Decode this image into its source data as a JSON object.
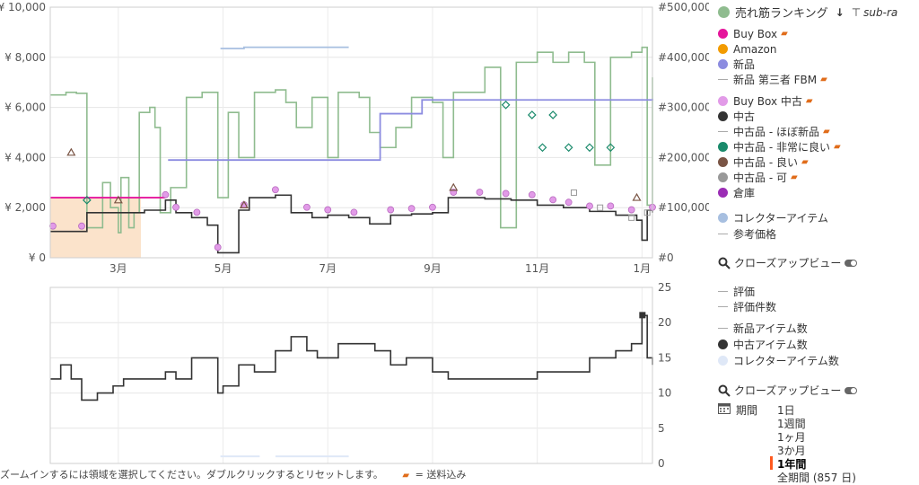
{
  "chart_data": [
    {
      "type": "line",
      "title": "",
      "x_tick_labels": [
        "3月",
        "5月",
        "7月",
        "9月",
        "11月",
        "1月"
      ],
      "x_tick_months": [
        2,
        4,
        6,
        8,
        10,
        12
      ],
      "x_range_months": [
        0.7,
        12.2
      ],
      "y_left": {
        "ticks": [
          "¥ 0",
          "¥ 2,000",
          "¥ 4,000",
          "¥ 6,000",
          "¥ 8,000",
          "¥ 10,000"
        ],
        "range": [
          0,
          10000
        ]
      },
      "y_right": {
        "ticks": [
          "#0",
          "#100,000",
          "#200,000",
          "#300,000",
          "#400,000",
          "#500,000"
        ],
        "range": [
          0,
          500000
        ]
      },
      "grid": true,
      "series": [
        {
          "name": "売れ筋ランキング",
          "axis": "right",
          "color": "#8fbc8f",
          "points": [
            [
              0.7,
              325000
            ],
            [
              1.0,
              330000
            ],
            [
              1.2,
              328000
            ],
            [
              1.4,
              60000
            ],
            [
              1.7,
              150000
            ],
            [
              1.85,
              100000
            ],
            [
              2.0,
              50000
            ],
            [
              2.05,
              160000
            ],
            [
              2.2,
              60000
            ],
            [
              2.3,
              90000
            ],
            [
              2.4,
              290000
            ],
            [
              2.6,
              300000
            ],
            [
              2.7,
              260000
            ],
            [
              2.8,
              90000
            ],
            [
              3.0,
              140000
            ],
            [
              3.3,
              320000
            ],
            [
              3.6,
              330000
            ],
            [
              3.9,
              120000
            ],
            [
              4.1,
              290000
            ],
            [
              4.3,
              200000
            ],
            [
              4.6,
              330000
            ],
            [
              5.0,
              335000
            ],
            [
              5.2,
              310000
            ],
            [
              5.4,
              260000
            ],
            [
              5.7,
              320000
            ],
            [
              6.0,
              200000
            ],
            [
              6.2,
              330000
            ],
            [
              6.6,
              320000
            ],
            [
              6.8,
              250000
            ],
            [
              7.0,
              220000
            ],
            [
              7.3,
              260000
            ],
            [
              7.6,
              320000
            ],
            [
              8.0,
              310000
            ],
            [
              8.2,
              200000
            ],
            [
              8.4,
              330000
            ],
            [
              8.8,
              330000
            ],
            [
              9.0,
              380000
            ],
            [
              9.3,
              60000
            ],
            [
              9.6,
              390000
            ],
            [
              10.0,
              410000
            ],
            [
              10.3,
              390000
            ],
            [
              10.6,
              410000
            ],
            [
              10.9,
              390000
            ],
            [
              11.1,
              185000
            ],
            [
              11.4,
              400000
            ],
            [
              11.8,
              410000
            ],
            [
              12.0,
              420000
            ],
            [
              12.1,
              105000
            ],
            [
              12.2,
              360000
            ]
          ]
        },
        {
          "name": "Buy Box",
          "axis": "left",
          "color": "#e5159b",
          "points": [
            [
              0.7,
              2400
            ],
            [
              2.9,
              2400
            ]
          ]
        },
        {
          "name": "新品",
          "axis": "left",
          "color": "#8c8ce0",
          "points": [
            [
              2.95,
              3900
            ],
            [
              3.3,
              3900
            ],
            [
              7.0,
              5750
            ],
            [
              7.4,
              5750
            ],
            [
              7.8,
              6300
            ],
            [
              12.2,
              6350
            ]
          ]
        },
        {
          "name": "中古",
          "axis": "left",
          "color": "#333333",
          "points": [
            [
              0.7,
              1050
            ],
            [
              1.1,
              1050
            ],
            [
              1.4,
              1800
            ],
            [
              2.0,
              1800
            ],
            [
              2.5,
              1900
            ],
            [
              2.9,
              2300
            ],
            [
              3.1,
              1800
            ],
            [
              3.4,
              1600
            ],
            [
              3.7,
              1300
            ],
            [
              3.9,
              200
            ],
            [
              4.3,
              1900
            ],
            [
              4.5,
              2400
            ],
            [
              5.0,
              2500
            ],
            [
              5.3,
              1800
            ],
            [
              5.7,
              1600
            ],
            [
              6.0,
              1700
            ],
            [
              6.4,
              1600
            ],
            [
              6.8,
              1350
            ],
            [
              7.2,
              1700
            ],
            [
              7.6,
              1750
            ],
            [
              8.0,
              1800
            ],
            [
              8.3,
              2400
            ],
            [
              9.0,
              2350
            ],
            [
              9.5,
              2300
            ],
            [
              10.0,
              2100
            ],
            [
              10.5,
              2000
            ],
            [
              11.0,
              1850
            ],
            [
              11.5,
              1700
            ],
            [
              11.9,
              1500
            ],
            [
              12.0,
              700
            ],
            [
              12.1,
              1900
            ],
            [
              12.2,
              1800
            ]
          ]
        },
        {
          "name": "コレクターアイテム",
          "axis": "left",
          "color": "#a7bfe0",
          "points": [
            [
              3.95,
              8350
            ],
            [
              4.4,
              8400
            ],
            [
              4.7,
              8400
            ],
            [
              6.4,
              8400
            ]
          ]
        }
      ]
    },
    {
      "type": "line",
      "y_right": {
        "ticks": [
          "0",
          "5",
          "10",
          "15",
          "20",
          "25"
        ],
        "range": [
          0,
          25
        ]
      },
      "series": [
        {
          "name": "中古アイテム数",
          "color": "#333333",
          "points": [
            [
              0.7,
              12
            ],
            [
              0.9,
              14
            ],
            [
              1.1,
              12
            ],
            [
              1.3,
              9
            ],
            [
              1.6,
              10
            ],
            [
              1.9,
              11
            ],
            [
              2.1,
              12
            ],
            [
              2.5,
              12
            ],
            [
              2.9,
              13
            ],
            [
              3.1,
              12
            ],
            [
              3.4,
              15
            ],
            [
              3.7,
              15
            ],
            [
              3.9,
              10
            ],
            [
              4.0,
              11
            ],
            [
              4.3,
              14
            ],
            [
              4.6,
              13
            ],
            [
              5.0,
              16
            ],
            [
              5.3,
              18
            ],
            [
              5.6,
              16
            ],
            [
              5.8,
              15
            ],
            [
              6.2,
              17
            ],
            [
              6.6,
              17
            ],
            [
              6.9,
              16
            ],
            [
              7.2,
              14
            ],
            [
              7.5,
              15
            ],
            [
              7.8,
              15
            ],
            [
              8.0,
              13
            ],
            [
              8.3,
              12
            ],
            [
              8.6,
              12
            ],
            [
              9.0,
              12
            ],
            [
              9.5,
              12
            ],
            [
              10.0,
              13
            ],
            [
              10.5,
              13
            ],
            [
              11.0,
              15
            ],
            [
              11.5,
              16
            ],
            [
              11.8,
              17
            ],
            [
              12.0,
              21
            ],
            [
              12.1,
              15
            ],
            [
              12.2,
              14
            ]
          ]
        }
      ]
    }
  ],
  "legend": {
    "sales_rank": {
      "label": "売れ筋ランキング",
      "color": "#8fbc8f",
      "sort_icon": "↓",
      "sub_label": "sub-ra"
    },
    "buybox": {
      "label": "Buy Box",
      "color": "#e5159b"
    },
    "amazon": {
      "label": "Amazon",
      "color": "#f29b00"
    },
    "new": {
      "label": "新品",
      "color": "#8c8ce0"
    },
    "new_fbm": {
      "label": "新品 第三者 FBM"
    },
    "buybox_used": {
      "label": "Buy Box 中古",
      "color": "#e29be8"
    },
    "used": {
      "label": "中古",
      "color": "#333333"
    },
    "used_like_new": {
      "label": "中古品 - ほぼ新品"
    },
    "used_very_good": {
      "label": "中古品 - 非常に良い",
      "color": "#1a8a6b"
    },
    "used_good": {
      "label": "中古品 - 良い",
      "color": "#7a5545"
    },
    "used_acceptable": {
      "label": "中古品 - 可",
      "color": "#999999"
    },
    "warehouse": {
      "label": "倉庫",
      "color": "#9b2db5"
    },
    "collectible": {
      "label": "コレクターアイテム",
      "color": "#a7bfe0"
    },
    "reference": {
      "label": "参考価格"
    },
    "closeup1": {
      "label": "クローズアップビュー"
    },
    "rating": {
      "label": "評価"
    },
    "rating_count": {
      "label": "評価件数"
    },
    "new_count": {
      "label": "新品アイテム数"
    },
    "used_count": {
      "label": "中古アイテム数",
      "color": "#333333"
    },
    "collectible_count": {
      "label": "コレクターアイテム数",
      "color": "#dfe8f7"
    },
    "closeup2": {
      "label": "クローズアップビュー"
    }
  },
  "range": {
    "label": "期間",
    "options": [
      "1日",
      "1週間",
      "1ヶ月",
      "3か月",
      "1年間",
      "全期間 (857 日)"
    ],
    "selected": "1年間"
  },
  "footer": {
    "hint": "ズームインするには領域を選択してください。ダブルクリックするとリセットします。",
    "shipping_note": "= 送料込み"
  }
}
